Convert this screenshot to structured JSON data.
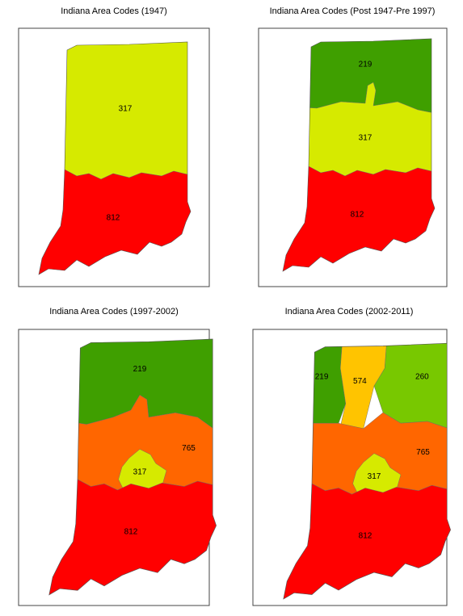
{
  "maps": [
    {
      "title": "Indiana Area Codes (1947)",
      "regions": [
        {
          "label": "317",
          "color": "#d6ea00"
        },
        {
          "label": "812",
          "color": "#ff0000"
        }
      ]
    },
    {
      "title": "Indiana Area Codes (Post 1947-Pre 1997)",
      "regions": [
        {
          "label": "219",
          "color": "#3f9f00"
        },
        {
          "label": "317",
          "color": "#d6ea00"
        },
        {
          "label": "812",
          "color": "#ff0000"
        }
      ]
    },
    {
      "title": "Indiana Area Codes (1997-2002)",
      "regions": [
        {
          "label": "219",
          "color": "#3f9f00"
        },
        {
          "label": "765",
          "color": "#ff6600"
        },
        {
          "label": "317",
          "color": "#d6ea00"
        },
        {
          "label": "812",
          "color": "#ff0000"
        }
      ]
    },
    {
      "title": "Indiana Area Codes (2002-2011)",
      "regions": [
        {
          "label": "219",
          "color": "#3f9f00"
        },
        {
          "label": "574",
          "color": "#ffc400"
        },
        {
          "label": "260",
          "color": "#78c800"
        },
        {
          "label": "765",
          "color": "#ff6600"
        },
        {
          "label": "317",
          "color": "#d6ea00"
        },
        {
          "label": "812",
          "color": "#ff0000"
        }
      ]
    }
  ]
}
